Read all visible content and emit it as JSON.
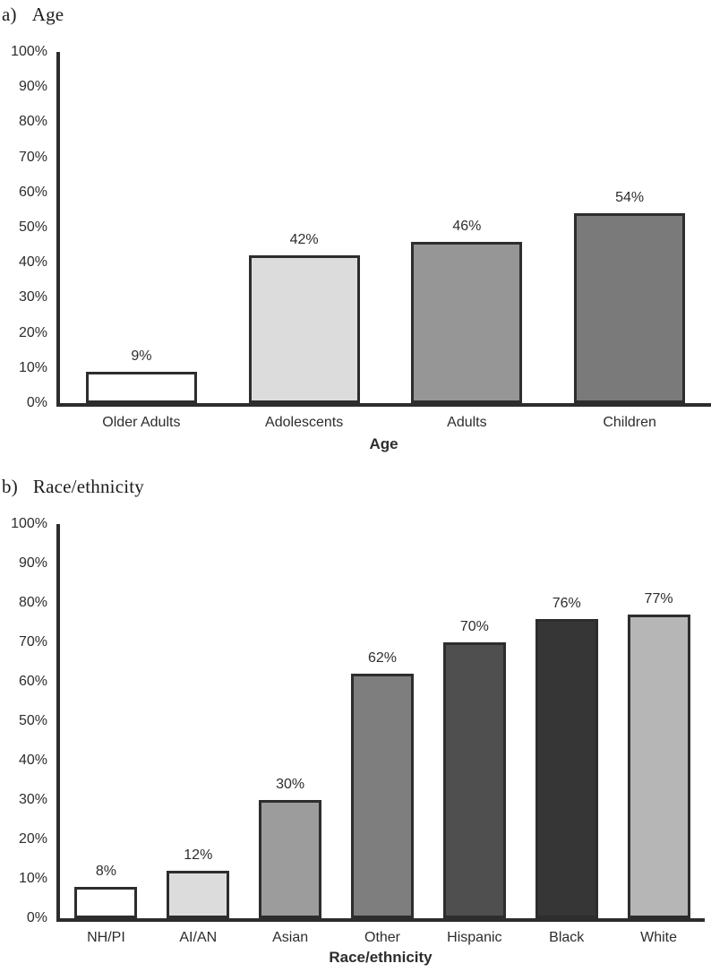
{
  "chart_data": [
    {
      "type": "bar",
      "panel_label": "a)",
      "panel_title": "Age",
      "title": "Age",
      "xlabel": "Age",
      "ylabel": "",
      "ylim": [
        0,
        100
      ],
      "y_tick_labels": [
        "0%",
        "10%",
        "20%",
        "30%",
        "40%",
        "50%",
        "60%",
        "70%",
        "80%",
        "90%",
        "100%"
      ],
      "grid": false,
      "legend": null,
      "categories": [
        "Older Adults",
        "Adolescents",
        "Adults",
        "Children"
      ],
      "values": [
        9,
        42,
        46,
        54
      ],
      "data_labels": [
        "9%",
        "42%",
        "46%",
        "54%"
      ],
      "bar_colors": [
        "#ffffff",
        "#dcdcdc",
        "#969696",
        "#7a7a7a"
      ],
      "bar_border_color": "#2d2d2d",
      "axis_color": "#2d2d2d",
      "text_color": "#2d2d2d"
    },
    {
      "type": "bar",
      "panel_label": "b)",
      "panel_title": "Race/ethnicity",
      "title": "Race/ethnicity",
      "xlabel": "Race/ethnicity",
      "ylabel": "",
      "ylim": [
        0,
        100
      ],
      "y_tick_labels": [
        "0%",
        "10%",
        "20%",
        "30%",
        "40%",
        "50%",
        "60%",
        "70%",
        "80%",
        "90%",
        "100%"
      ],
      "grid": false,
      "legend": null,
      "categories": [
        "NH/PI",
        "AI/AN",
        "Asian",
        "Other",
        "Hispanic",
        "Black",
        "White"
      ],
      "values": [
        8,
        12,
        30,
        62,
        70,
        76,
        77
      ],
      "data_labels": [
        "8%",
        "12%",
        "30%",
        "62%",
        "70%",
        "76%",
        "77%"
      ],
      "bar_colors": [
        "#ffffff",
        "#dcdcdc",
        "#9c9c9c",
        "#7e7e7e",
        "#4f4f4f",
        "#363636",
        "#b6b6b6"
      ],
      "bar_border_color": "#2d2d2d",
      "axis_color": "#2d2d2d",
      "text_color": "#2d2d2d"
    }
  ]
}
